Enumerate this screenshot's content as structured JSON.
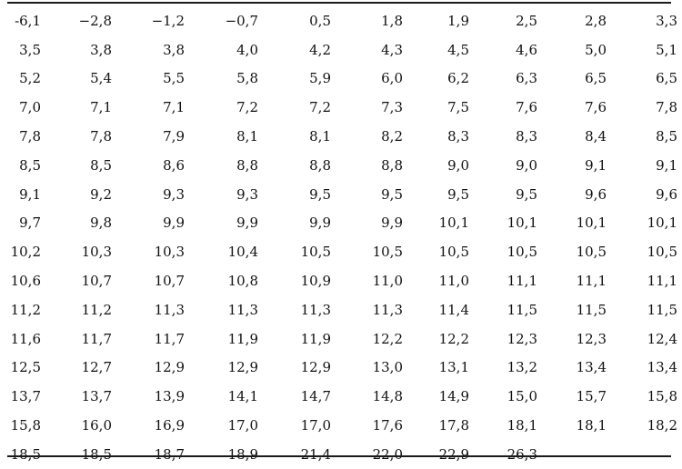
{
  "table": {
    "rows": [
      [
        "-6,1",
        "−2,8",
        "−1,2",
        "−0,7",
        "0,5",
        "1,8",
        "1,9",
        "2,5",
        "2,8",
        "3,3"
      ],
      [
        "3,5",
        "3,8",
        "3,8",
        "4,0",
        "4,2",
        "4,3",
        "4,5",
        "4,6",
        "5,0",
        "5,1"
      ],
      [
        "5,2",
        "5,4",
        "5,5",
        "5,8",
        "5,9",
        "6,0",
        "6,2",
        "6,3",
        "6,5",
        "6,5"
      ],
      [
        "7,0",
        "7,1",
        "7,1",
        "7,2",
        "7,2",
        "7,3",
        "7,5",
        "7,6",
        "7,6",
        "7,8"
      ],
      [
        "7,8",
        "7,8",
        "7,9",
        "8,1",
        "8,1",
        "8,2",
        "8,3",
        "8,3",
        "8,4",
        "8,5"
      ],
      [
        "8,5",
        "8,5",
        "8,6",
        "8,8",
        "8,8",
        "8,8",
        "9,0",
        "9,0",
        "9,1",
        "9,1"
      ],
      [
        "9,1",
        "9,2",
        "9,3",
        "9,3",
        "9,5",
        "9,5",
        "9,5",
        "9,5",
        "9,6",
        "9,6"
      ],
      [
        "9,7",
        "9,8",
        "9,9",
        "9,9",
        "9,9",
        "9,9",
        "10,1",
        "10,1",
        "10,1",
        "10,1"
      ],
      [
        "10,2",
        "10,3",
        "10,3",
        "10,4",
        "10,5",
        "10,5",
        "10,5",
        "10,5",
        "10,5",
        "10,5"
      ],
      [
        "10,6",
        "10,7",
        "10,7",
        "10,8",
        "10,9",
        "11,0",
        "11,0",
        "11,1",
        "11,1",
        "11,1"
      ],
      [
        "11,2",
        "11,2",
        "11,3",
        "11,3",
        "11,3",
        "11,3",
        "11,4",
        "11,5",
        "11,5",
        "11,5"
      ],
      [
        "11,6",
        "11,7",
        "11,7",
        "11,9",
        "11,9",
        "12,2",
        "12,2",
        "12,3",
        "12,3",
        "12,4"
      ],
      [
        "12,5",
        "12,7",
        "12,9",
        "12,9",
        "12,9",
        "13,0",
        "13,1",
        "13,2",
        "13,4",
        "13,4"
      ],
      [
        "13,7",
        "13,7",
        "13,9",
        "14,1",
        "14,7",
        "14,8",
        "14,9",
        "15,0",
        "15,7",
        "15,8"
      ],
      [
        "15,8",
        "16,0",
        "16,9",
        "17,0",
        "17,0",
        "17,6",
        "17,8",
        "18,1",
        "18,1",
        "18,2"
      ],
      [
        "18,5",
        "18,5",
        "18,7",
        "18,9",
        "21,4",
        "22,0",
        "22,9",
        "26,3",
        "",
        ""
      ]
    ]
  }
}
